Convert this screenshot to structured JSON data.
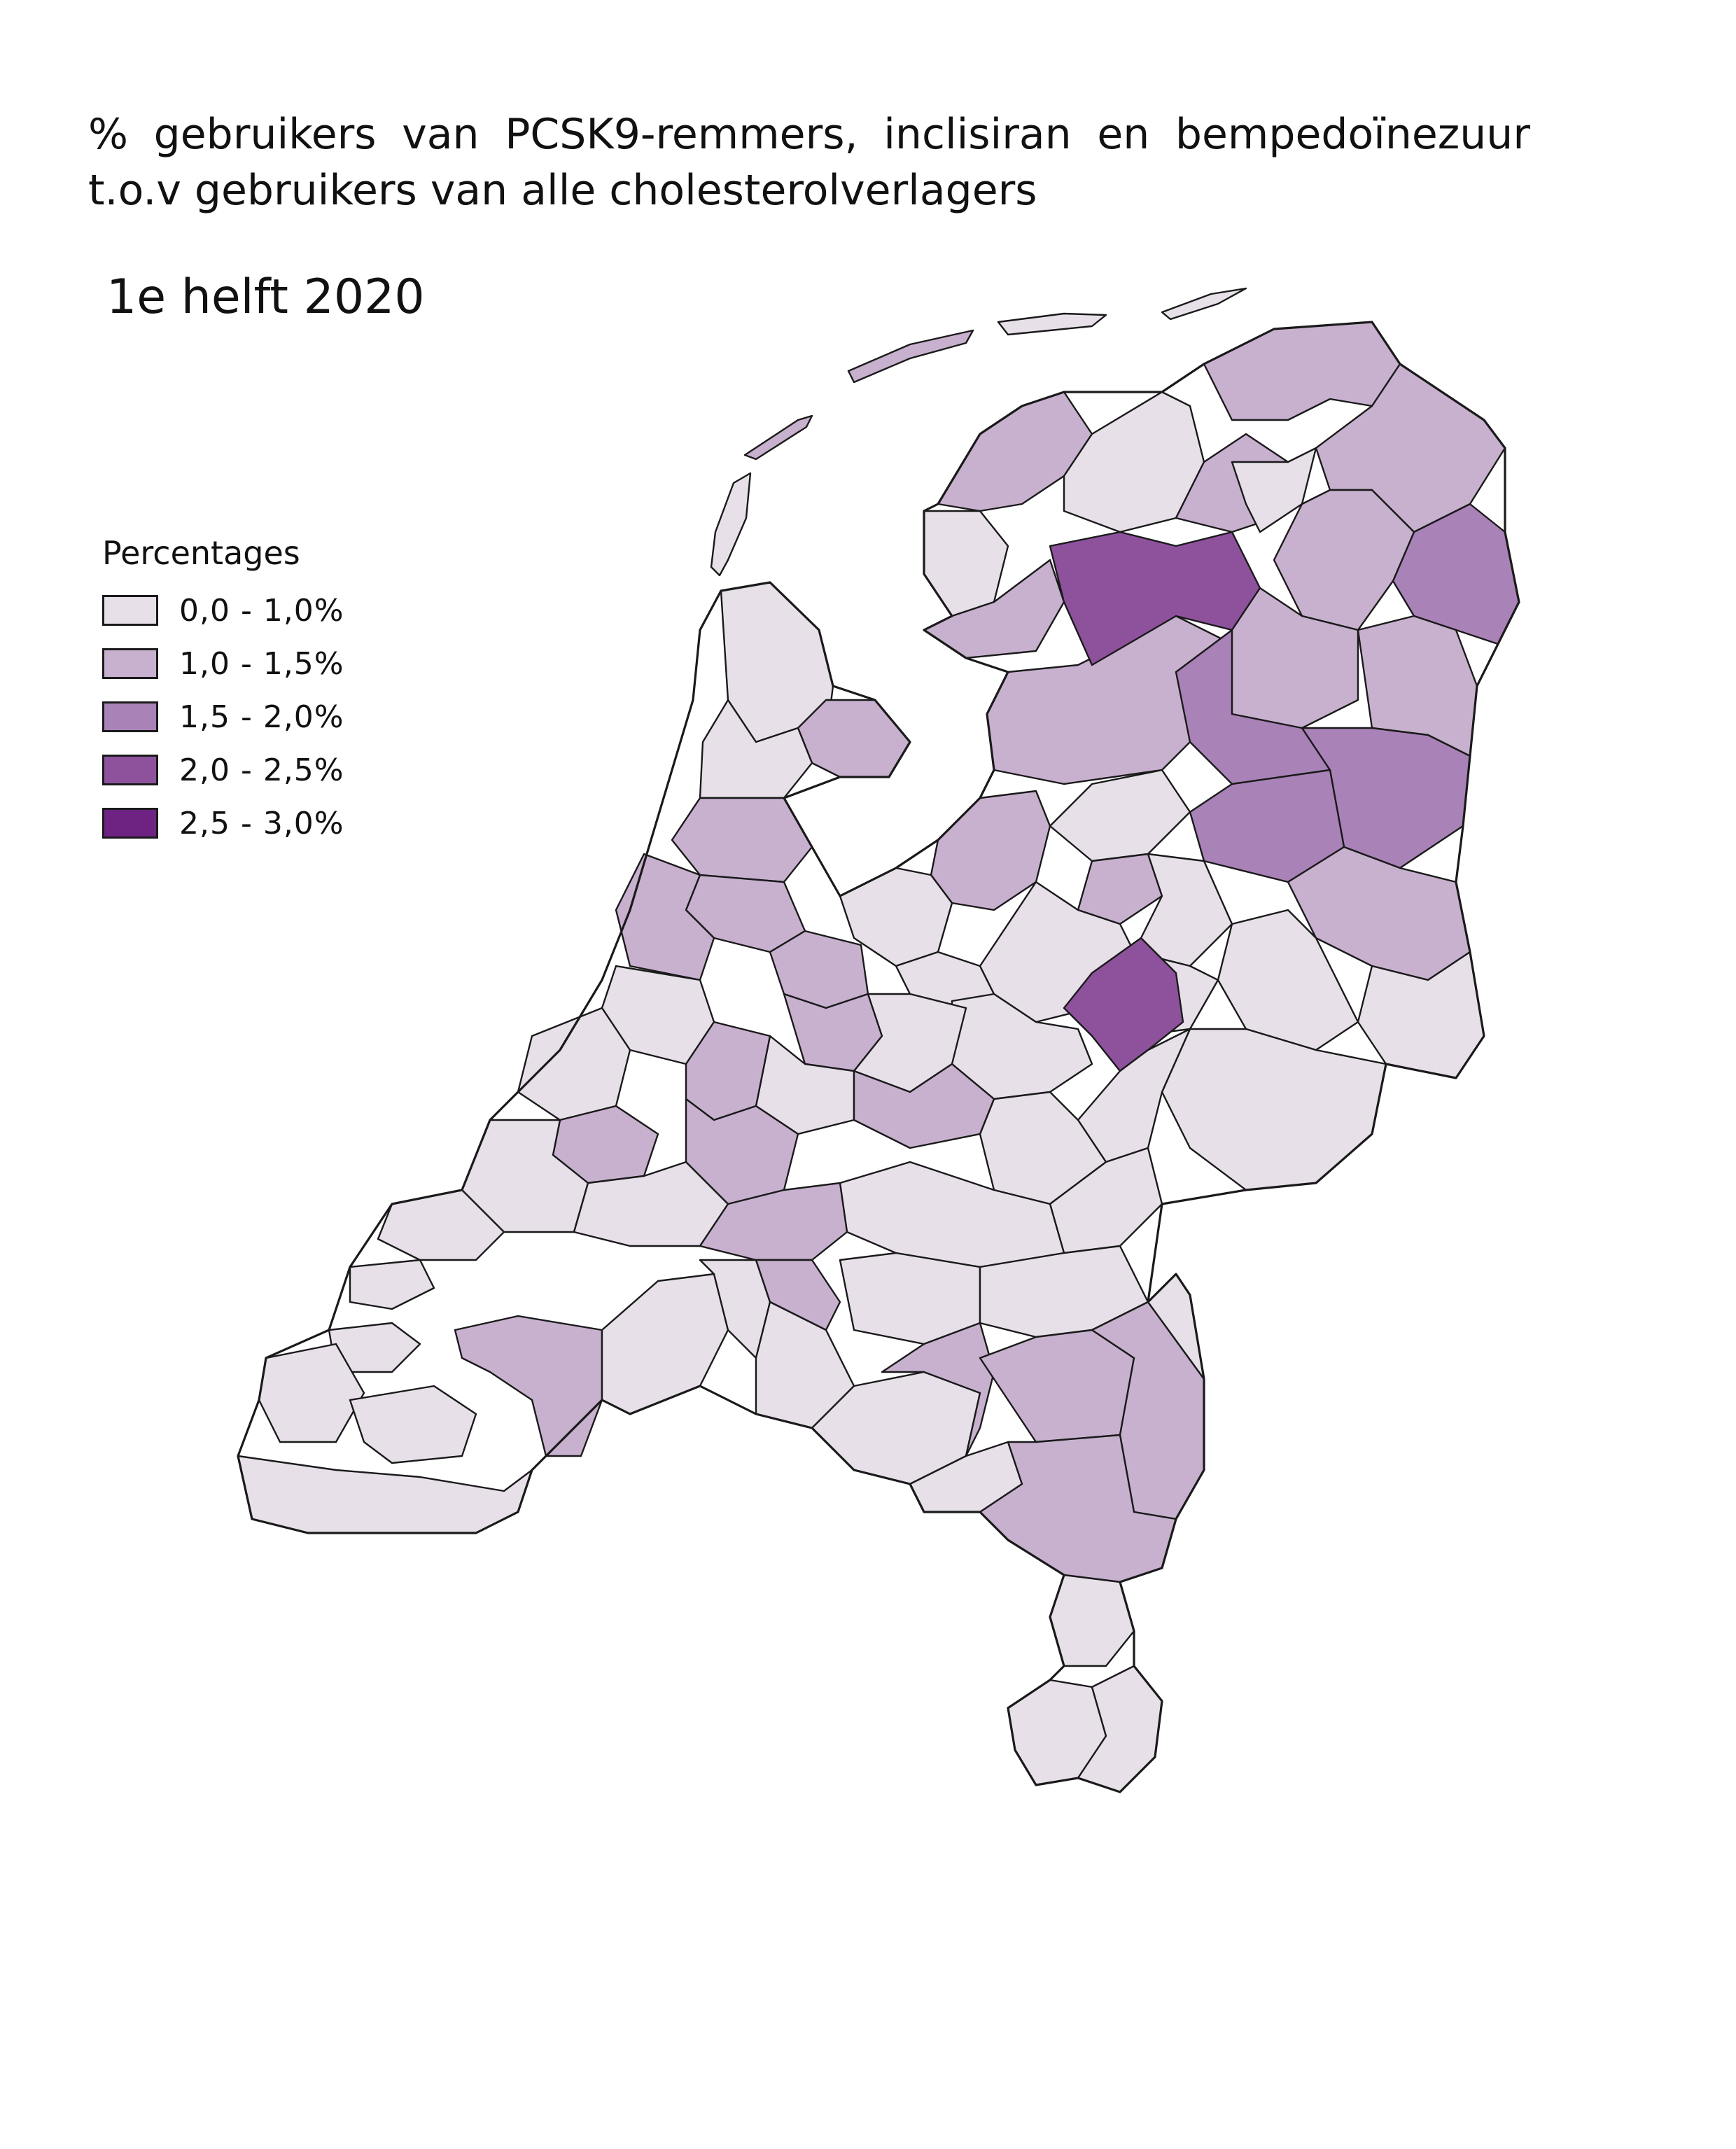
{
  "title": "% gebruikers van PCSK9-remmers, inclisiran en bempedoïnezuur t.o.v gebruikers van alle cholesterolverlagers",
  "subtitle": "1e helft 2020",
  "legend": {
    "title": "Percentages",
    "classes": [
      {
        "label": "0,0 - 1,0%",
        "color": "#e7e0e9"
      },
      {
        "label": "1,0 - 1,5%",
        "color": "#c8b1cf"
      },
      {
        "label": "1,5 - 2,0%",
        "color": "#a982b8"
      },
      {
        "label": "2,0 - 2,5%",
        "color": "#8e529d"
      },
      {
        "label": "2,5 - 3,0%",
        "color": "#6e2383"
      }
    ]
  },
  "colors": {
    "border": "#1a1a1a",
    "water": "#ffffff"
  }
}
